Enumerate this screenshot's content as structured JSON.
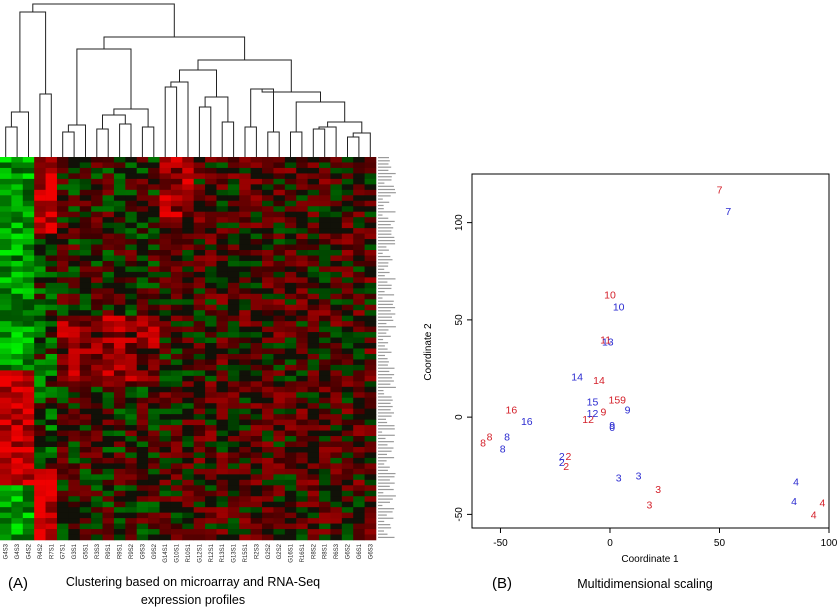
{
  "panel_a": {
    "letter": "(A)",
    "caption_line1": "Clustering based on microarray and RNA-Seq",
    "caption_line2": "expression profiles"
  },
  "panel_b": {
    "letter": "(B)",
    "caption": "Multidimensional scaling"
  },
  "colors": {
    "red": "#d4202a",
    "blue": "#2a2ad0",
    "heat_green": "#00ff00",
    "heat_red": "#ff0000"
  },
  "chart_data": [
    {
      "type": "heatmap",
      "dendrogram": "hierarchical clustering tree over the columns",
      "color_scale": [
        "green",
        "black",
        "red"
      ],
      "categories": [
        "G4S3",
        "G4S3",
        "G4S2",
        "R4S2",
        "R7S1",
        "G7S1",
        "G3S1",
        "G5S1",
        "R3S3",
        "R9S1",
        "R9S1",
        "R9S2",
        "G9S3",
        "G9S2",
        "G14S1",
        "G10S1",
        "R10S1",
        "G12S1",
        "R12S1",
        "R13S1",
        "G13S1",
        "R15S1",
        "R2S3",
        "G2S2",
        "G2S2",
        "G16S1",
        "R16S1",
        "R8S2",
        "R8S1",
        "R6S3",
        "G6S2",
        "G6S1",
        "G6S3"
      ]
    },
    {
      "type": "scatter",
      "xlabel": "Coordinate 1",
      "ylabel": "Coordinate 2",
      "xlim": [
        -63,
        100
      ],
      "ylim": [
        -57,
        125
      ],
      "xticks": [
        -50,
        0,
        50,
        100
      ],
      "yticks": [
        -50,
        0,
        50,
        100
      ],
      "series": [
        {
          "color": "red",
          "points": [
            {
              "label": "7",
              "x": 50,
              "y": 117
            },
            {
              "label": "10",
              "x": 0,
              "y": 63
            },
            {
              "label": "11",
              "x": -2,
              "y": 40
            },
            {
              "label": "14",
              "x": -5,
              "y": 19
            },
            {
              "label": "16",
              "x": -45,
              "y": 4
            },
            {
              "label": "15",
              "x": 2,
              "y": 9
            },
            {
              "label": "9",
              "x": 6,
              "y": 9
            },
            {
              "label": "9",
              "x": -3,
              "y": 3
            },
            {
              "label": "12",
              "x": -10,
              "y": -1
            },
            {
              "label": "8",
              "x": -55,
              "y": -10
            },
            {
              "label": "8",
              "x": -58,
              "y": -13
            },
            {
              "label": "2",
              "x": -19,
              "y": -20
            },
            {
              "label": "2",
              "x": -20,
              "y": -25
            },
            {
              "label": "3",
              "x": 22,
              "y": -37
            },
            {
              "label": "3",
              "x": 18,
              "y": -45
            },
            {
              "label": "4",
              "x": 97,
              "y": -44
            },
            {
              "label": "4",
              "x": 93,
              "y": -50
            }
          ]
        },
        {
          "color": "blue",
          "points": [
            {
              "label": "7",
              "x": 54,
              "y": 106
            },
            {
              "label": "10",
              "x": 4,
              "y": 57
            },
            {
              "label": "13",
              "x": -1,
              "y": 39
            },
            {
              "label": "14",
              "x": -15,
              "y": 21
            },
            {
              "label": "16",
              "x": -38,
              "y": -2
            },
            {
              "label": "15",
              "x": -8,
              "y": 8
            },
            {
              "label": "9",
              "x": 8,
              "y": 4
            },
            {
              "label": "12",
              "x": -8,
              "y": 2
            },
            {
              "label": "9",
              "x": 1,
              "y": -4
            },
            {
              "label": "0",
              "x": 1,
              "y": -5
            },
            {
              "label": "8",
              "x": -47,
              "y": -10
            },
            {
              "label": "8",
              "x": -49,
              "y": -16
            },
            {
              "label": "2",
              "x": -22,
              "y": -20
            },
            {
              "label": "2",
              "x": -22,
              "y": -23
            },
            {
              "label": "3",
              "x": 13,
              "y": -30
            },
            {
              "label": "3",
              "x": 4,
              "y": -31
            },
            {
              "label": "4",
              "x": 85,
              "y": -33
            },
            {
              "label": "4",
              "x": 84,
              "y": -43
            }
          ]
        }
      ]
    }
  ]
}
